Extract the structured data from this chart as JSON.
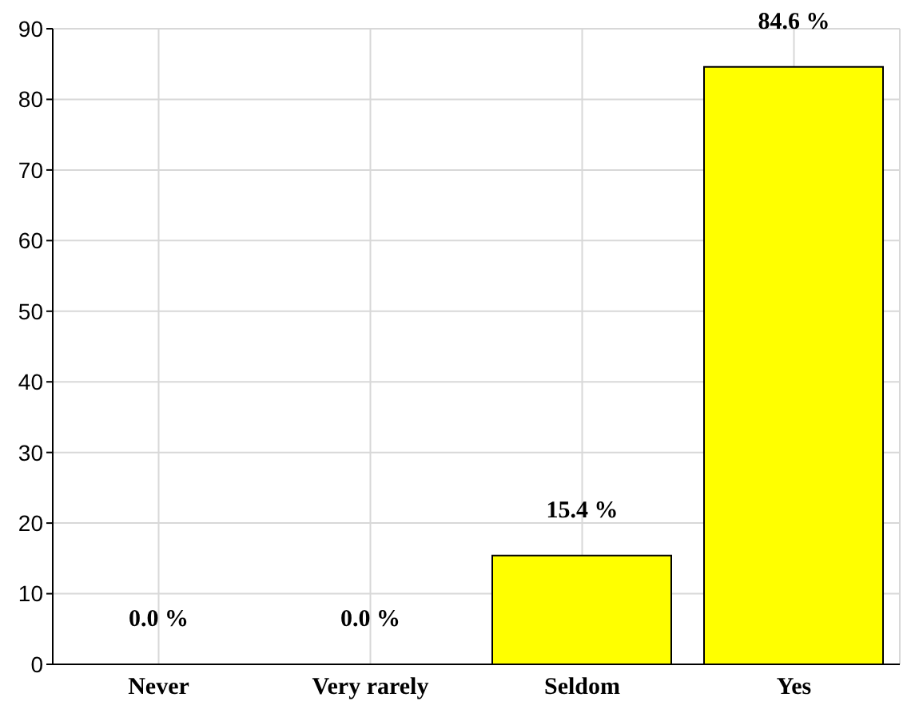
{
  "chart_data": {
    "type": "bar",
    "categories": [
      "Never",
      "Very rarely",
      "Seldom",
      "Yes"
    ],
    "values": [
      0.0,
      0.0,
      15.4,
      84.6
    ],
    "value_labels": [
      "0.0 %",
      "0.0 %",
      "15.4 %",
      "84.6 %"
    ],
    "color": "#ffff00",
    "ylim": [
      0,
      90
    ],
    "yticks": [
      0,
      10,
      20,
      30,
      40,
      50,
      60,
      70,
      80,
      90
    ],
    "grid": true
  }
}
